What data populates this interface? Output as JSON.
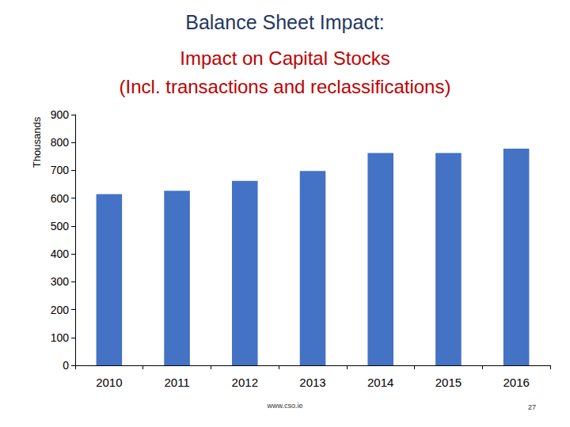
{
  "chart_data": {
    "type": "bar",
    "title": "Balance Sheet Impact:",
    "subtitle": [
      "Impact on Capital Stocks",
      "(Incl. transactions and reclassifications)"
    ],
    "y_label": "Thousands",
    "annotations": [
      "www.cso.ie",
      "27"
    ],
    "categories": [
      "2010",
      "2011",
      "2012",
      "2013",
      "2014",
      "2015",
      "2016"
    ],
    "values": [
      615,
      627,
      662,
      698,
      762,
      762,
      778
    ],
    "color": "#4472c4",
    "ylim": [
      0,
      900
    ],
    "yticks": [
      0,
      100,
      200,
      300,
      400,
      500,
      600,
      700,
      800,
      900
    ],
    "grid": false
  }
}
